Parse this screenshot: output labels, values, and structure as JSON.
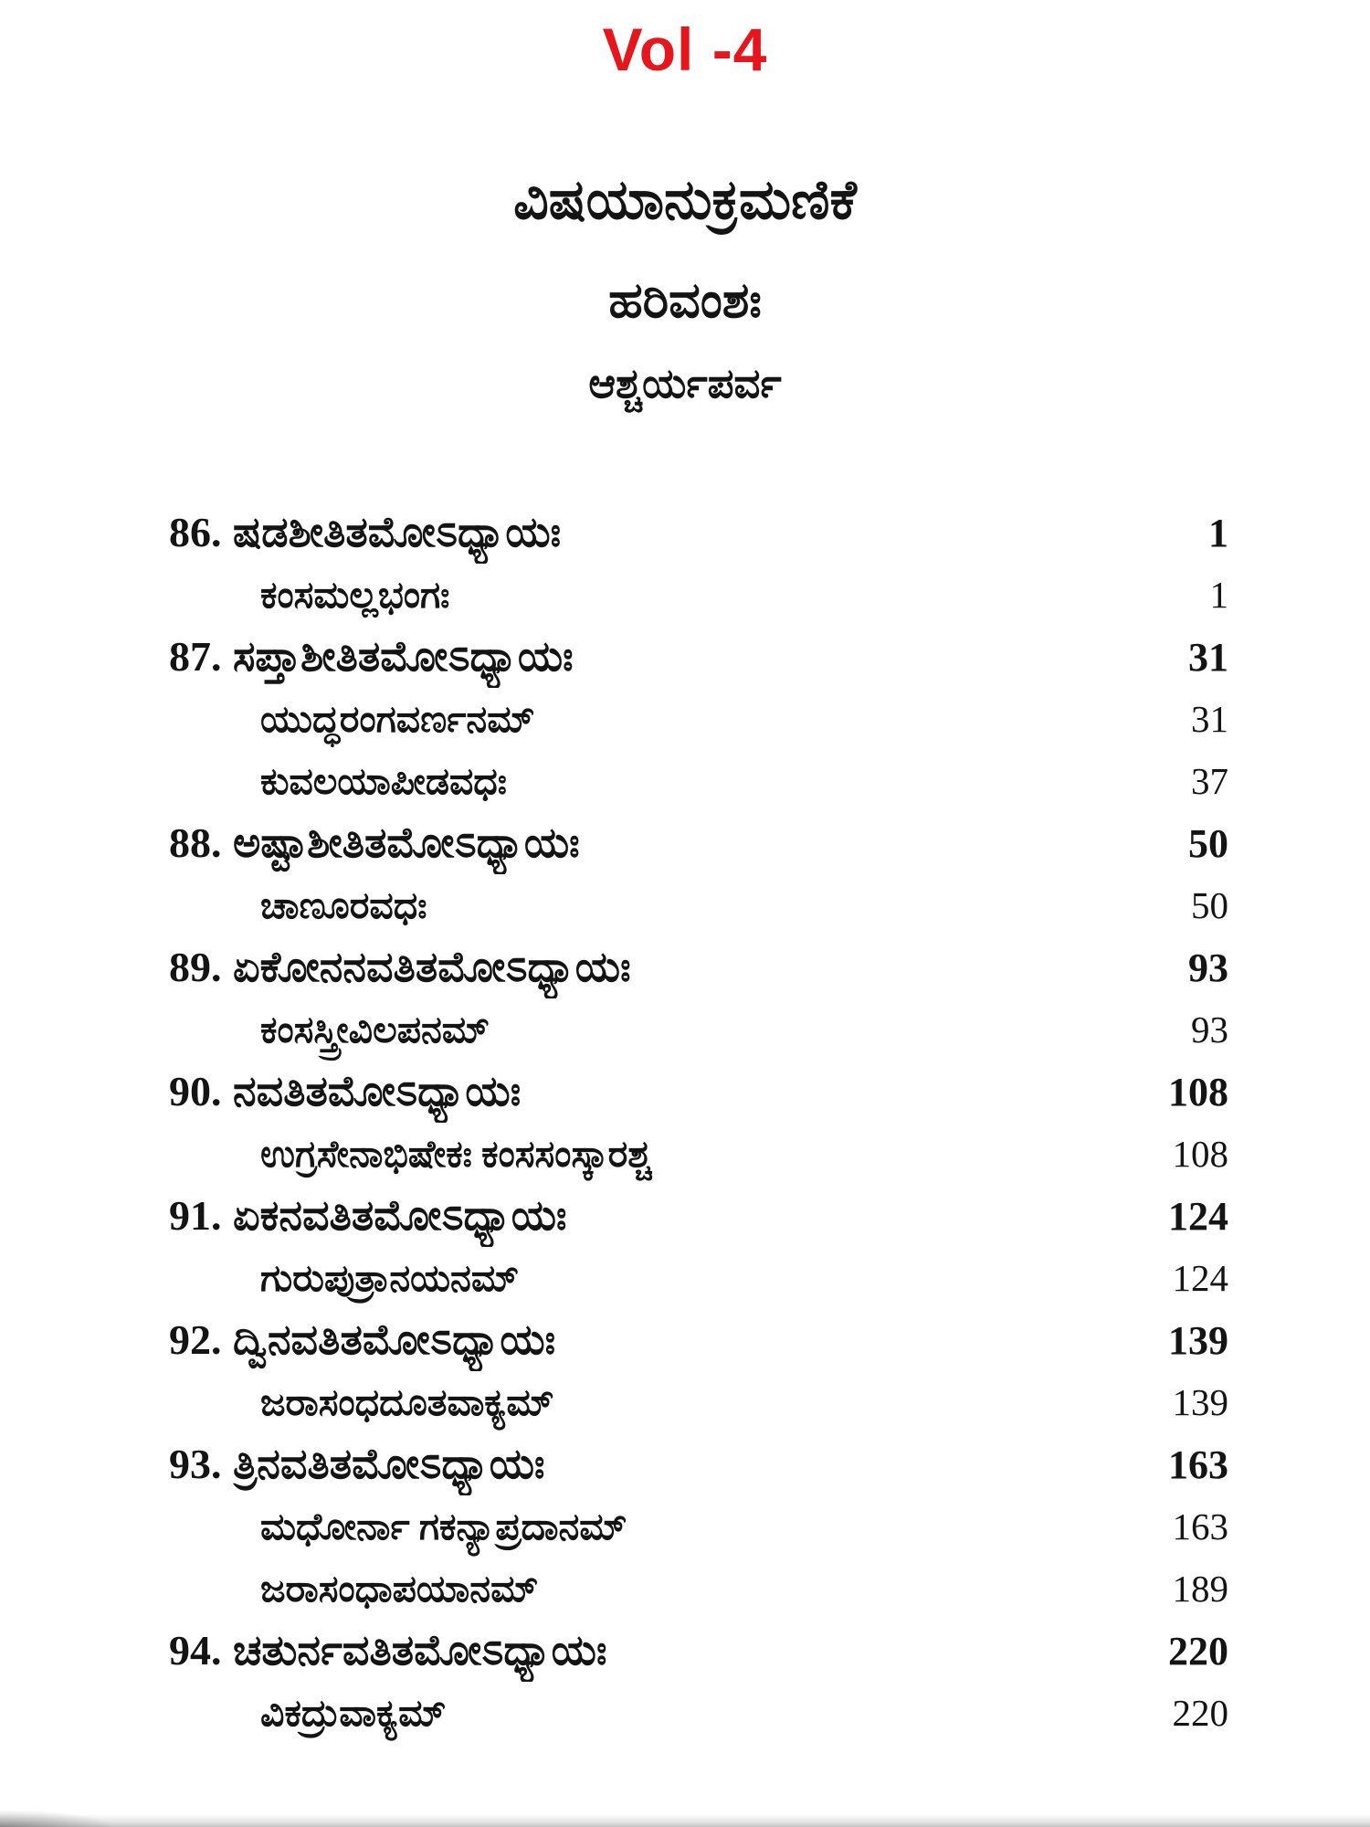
{
  "page": {
    "volume_label": "Vol -4",
    "heading": "ವಿಷಯಾನುಕ್ರಮಣಿಕೆ",
    "subheading": "ಹರಿವಂಶಃ",
    "section": "ಆಶ್ಚರ್ಯಪರ್ವ",
    "accent_color": "#e6161d",
    "text_color": "#141414"
  },
  "toc": {
    "entries": [
      {
        "number": "86.",
        "title": "ಷಡಶೀತಿತಮೋಽಧ್ಯಾಯಃ",
        "page": "1",
        "subs": [
          {
            "title": "ಕಂಸಮಲ್ಲಭಂಗಃ",
            "page": "1"
          }
        ]
      },
      {
        "number": "87.",
        "title": "ಸಪ್ತಾಶೀತಿತಮೋಽಧ್ಯಾಯಃ",
        "page": "31",
        "subs": [
          {
            "title": "ಯುದ್ಧರಂಗವರ್ಣನಮ್",
            "page": "31"
          },
          {
            "title": "ಕುವಲಯಾಪೀಡವಧಃ",
            "page": "37"
          }
        ]
      },
      {
        "number": "88.",
        "title": "ಅಷ್ಟಾಶೀತಿತಮೋಽಧ್ಯಾಯಃ",
        "page": "50",
        "subs": [
          {
            "title": "ಚಾಣೂರವಧಃ",
            "page": "50"
          }
        ]
      },
      {
        "number": "89.",
        "title": "ಏಕೋನನವತಿತಮೋಽಧ್ಯಾಯಃ",
        "page": "93",
        "subs": [
          {
            "title": "ಕಂಸಸ್ತ್ರೀವಿಲಪನಮ್",
            "page": "93"
          }
        ]
      },
      {
        "number": "90.",
        "title": "ನವತಿತಮೋಽಧ್ಯಾಯಃ",
        "page": "108",
        "subs": [
          {
            "title": "ಉಗ್ರಸೇನಾಭಿಷೇಕಃ ಕಂಸಸಂಸ್ಕಾರಶ್ಚ",
            "page": "108"
          }
        ]
      },
      {
        "number": "91.",
        "title": "ಏಕನವತಿತಮೋಽಧ್ಯಾಯಃ",
        "page": "124",
        "subs": [
          {
            "title": "ಗುರುಪುತ್ರಾನಯನಮ್",
            "page": "124"
          }
        ]
      },
      {
        "number": "92.",
        "title": "ದ್ವಿನವತಿತಮೋಽಧ್ಯಾಯಃ",
        "page": "139",
        "subs": [
          {
            "title": "ಜರಾಸಂಧದೂತವಾಕ್ಯಮ್",
            "page": "139"
          }
        ]
      },
      {
        "number": "93.",
        "title": "ತ್ರಿನವತಿತಮೋಽಧ್ಯಾಯಃ",
        "page": "163",
        "subs": [
          {
            "title": "ಮಧೋರ್ನಾ ಗಕನ್ಯಾಪ್ರದಾನಮ್",
            "page": "163"
          },
          {
            "title": "ಜರಾಸಂಧಾಪಯಾನಮ್",
            "page": "189"
          }
        ]
      },
      {
        "number": "94.",
        "title": "ಚತುರ್ನವತಿತಮೋಽಧ್ಯಾಯಃ",
        "page": "220",
        "subs": [
          {
            "title": "ವಿಕದ್ರುವಾಕ್ಯಮ್",
            "page": "220"
          }
        ]
      }
    ]
  }
}
